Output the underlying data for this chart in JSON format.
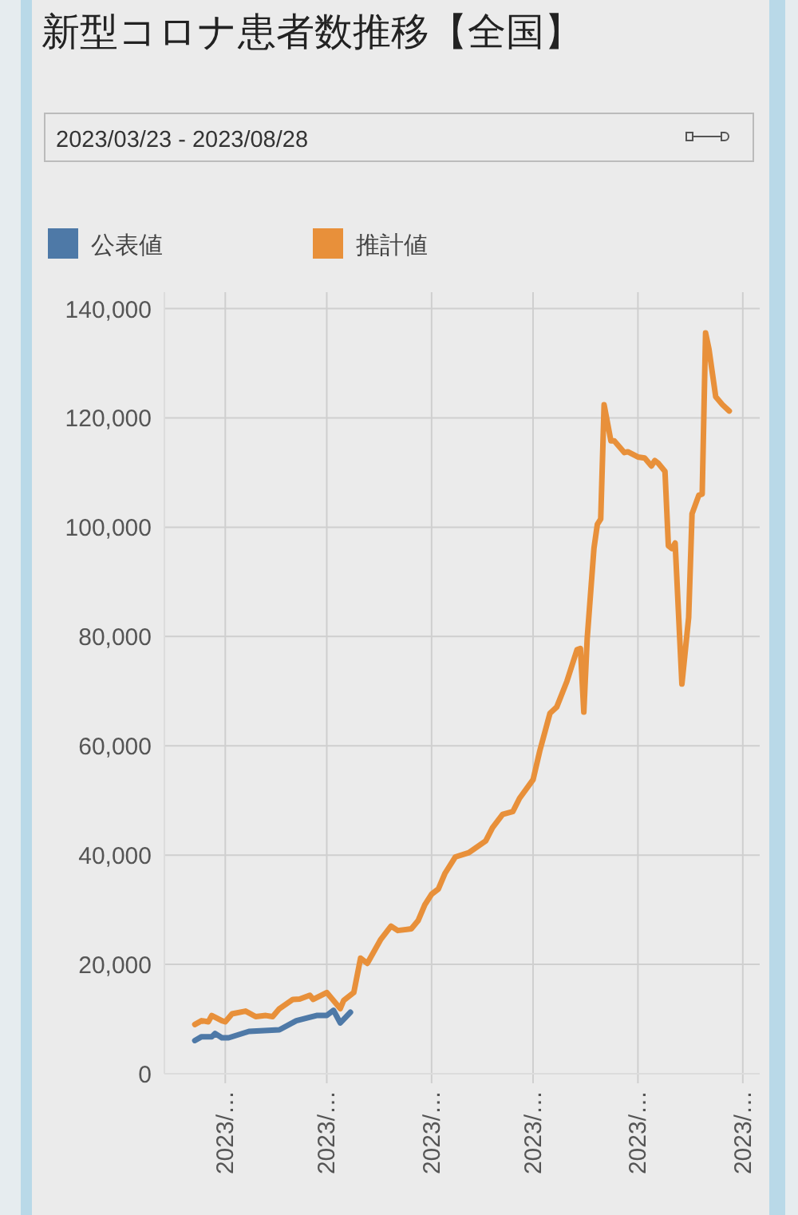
{
  "chart_data": {
    "type": "line",
    "title": "新型コロナ患者数推移【全国】",
    "annotations": [
      "2023/03/23 - 2023/08/28"
    ],
    "series": [
      {
        "name": "公表値",
        "color": "#4e79a7",
        "x": [
          "2023-03-23",
          "2023-03-25",
          "2023-03-28",
          "2023-03-29",
          "2023-03-31",
          "2023-04-02",
          "2023-04-08",
          "2023-04-17",
          "2023-04-22",
          "2023-04-28",
          "2023-05-01",
          "2023-05-03",
          "2023-05-05",
          "2023-05-08"
        ],
        "values": [
          6070,
          6770,
          6770,
          7360,
          6570,
          6570,
          7740,
          8030,
          9700,
          10650,
          10650,
          11600,
          9300,
          11250
        ]
      },
      {
        "name": "推計値",
        "color": "#e8903a",
        "x": [
          "2023-03-23",
          "2023-03-25",
          "2023-03-27",
          "2023-03-28",
          "2023-03-31",
          "2023-04-01",
          "2023-04-03",
          "2023-04-07",
          "2023-04-10",
          "2023-04-13",
          "2023-04-15",
          "2023-04-17",
          "2023-04-21",
          "2023-04-23",
          "2023-04-26",
          "2023-04-27",
          "2023-05-01",
          "2023-05-05",
          "2023-05-06",
          "2023-05-09",
          "2023-05-11",
          "2023-05-13",
          "2023-05-17",
          "2023-05-20",
          "2023-05-22",
          "2023-05-26",
          "2023-05-28",
          "2023-05-30",
          "2023-06-01",
          "2023-06-03",
          "2023-06-05",
          "2023-06-08",
          "2023-06-12",
          "2023-06-17",
          "2023-06-19",
          "2023-06-22",
          "2023-06-25",
          "2023-06-27",
          "2023-07-01",
          "2023-07-03",
          "2023-07-06",
          "2023-07-08",
          "2023-07-11",
          "2023-07-14",
          "2023-07-15",
          "2023-07-16",
          "2023-07-17",
          "2023-07-19",
          "2023-07-20",
          "2023-07-21",
          "2023-07-22",
          "2023-07-24",
          "2023-07-25",
          "2023-07-28",
          "2023-07-29",
          "2023-08-01",
          "2023-08-03",
          "2023-08-05",
          "2023-08-06",
          "2023-08-07",
          "2023-08-09",
          "2023-08-10",
          "2023-08-11",
          "2023-08-12",
          "2023-08-14",
          "2023-08-16",
          "2023-08-17",
          "2023-08-19",
          "2023-08-20",
          "2023-08-21",
          "2023-08-22",
          "2023-08-24",
          "2023-08-26",
          "2023-08-28"
        ],
        "values": [
          9000,
          9700,
          9500,
          10650,
          9700,
          9500,
          10950,
          11450,
          10450,
          10650,
          10450,
          11900,
          13600,
          13650,
          14350,
          13600,
          14850,
          11900,
          13400,
          14850,
          21150,
          20200,
          24600,
          27000,
          26200,
          26500,
          28000,
          30900,
          32850,
          33800,
          36700,
          39650,
          40450,
          42600,
          45000,
          47450,
          47950,
          50400,
          53800,
          59100,
          65950,
          67100,
          71800,
          77600,
          77800,
          66150,
          79600,
          96100,
          100500,
          101500,
          122400,
          115800,
          115800,
          113650,
          113800,
          112850,
          112650,
          111200,
          112200,
          111700,
          110200,
          96600,
          96100,
          97100,
          71300,
          83450,
          102450,
          105850,
          106050,
          135550,
          132600,
          123850,
          122400,
          121250
        ]
      }
    ],
    "xlim": [
      "2023-03-14",
      "2023-09-06"
    ],
    "xticks": [
      {
        "value": "2023-04-01",
        "label": "2023/…"
      },
      {
        "value": "2023-05-01",
        "label": "2023/…"
      },
      {
        "value": "2023-06-01",
        "label": "2023/…"
      },
      {
        "value": "2023-07-01",
        "label": "2023/…"
      },
      {
        "value": "2023-08-01",
        "label": "2023/…"
      },
      {
        "value": "2023-09-01",
        "label": "2023/…"
      }
    ],
    "ylim": [
      0,
      143000
    ],
    "yticks": [
      0,
      {
        "value": 20000,
        "label": "20,000"
      },
      {
        "value": 40000,
        "label": "40,000"
      },
      {
        "value": 60000,
        "label": "60,000"
      },
      {
        "value": 80000,
        "label": "80,000"
      },
      {
        "value": 100000,
        "label": "100,000"
      },
      {
        "value": 120000,
        "label": "120,000"
      },
      {
        "value": 140000,
        "label": "140,000"
      }
    ],
    "grid": true,
    "legend": "top left",
    "marker": "none",
    "line_style": "solid"
  }
}
